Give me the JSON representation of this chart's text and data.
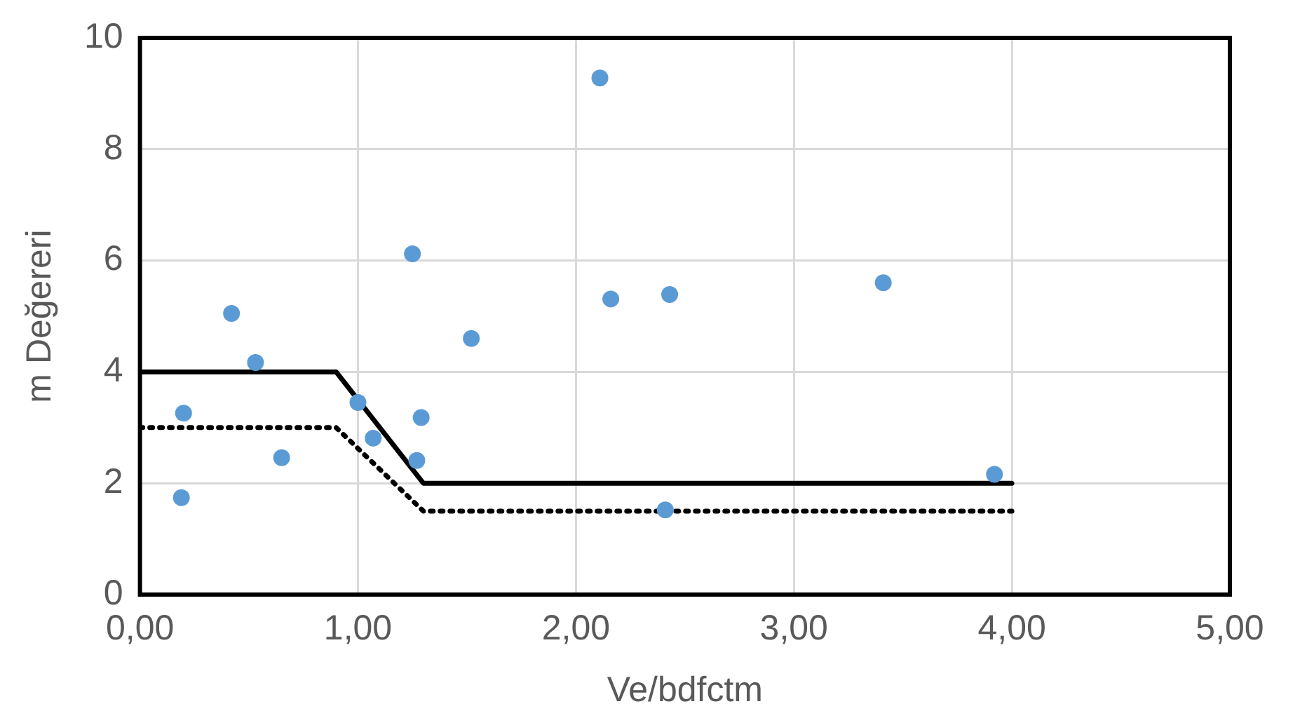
{
  "chart_data": {
    "type": "scatter",
    "xlabel": "Ve/bdfctm",
    "ylabel": "m Değereri",
    "xlim": [
      0,
      5
    ],
    "xticks": [
      {
        "value": 0,
        "label": "0,00"
      },
      {
        "value": 1,
        "label": "1,00"
      },
      {
        "value": 2,
        "label": "2,00"
      },
      {
        "value": 3,
        "label": "3,00"
      },
      {
        "value": 4,
        "label": "4,00"
      },
      {
        "value": 5,
        "label": "5,00"
      }
    ],
    "ylim": [
      0,
      10
    ],
    "yticks": [
      0,
      2,
      4,
      6,
      8,
      10
    ],
    "grid": true,
    "legend": false,
    "series": [
      {
        "color": "#5b9bd5",
        "marker": "circle",
        "x": [
          0.19,
          0.2,
          0.42,
          0.53,
          0.65,
          1.0,
          1.07,
          1.25,
          1.27,
          1.29,
          1.52,
          2.11,
          2.16,
          2.43,
          2.41,
          3.41,
          3.92
        ],
        "values": [
          1.74,
          3.26,
          5.05,
          4.17,
          2.46,
          3.45,
          2.81,
          6.12,
          2.41,
          3.18,
          4.6,
          9.28,
          5.31,
          5.39,
          1.52,
          5.6,
          2.16
        ]
      },
      {
        "type": "line",
        "color": "#000000",
        "marker": "none",
        "line_style": "solid",
        "x": [
          0,
          0.9,
          1.3,
          4
        ],
        "values": [
          4,
          4,
          2,
          2
        ]
      },
      {
        "type": "line",
        "color": "#000000",
        "marker": "none",
        "line_style": "dotted",
        "x": [
          0,
          0.9,
          1.3,
          4
        ],
        "values": [
          3,
          3,
          1.5,
          1.5
        ]
      }
    ]
  }
}
